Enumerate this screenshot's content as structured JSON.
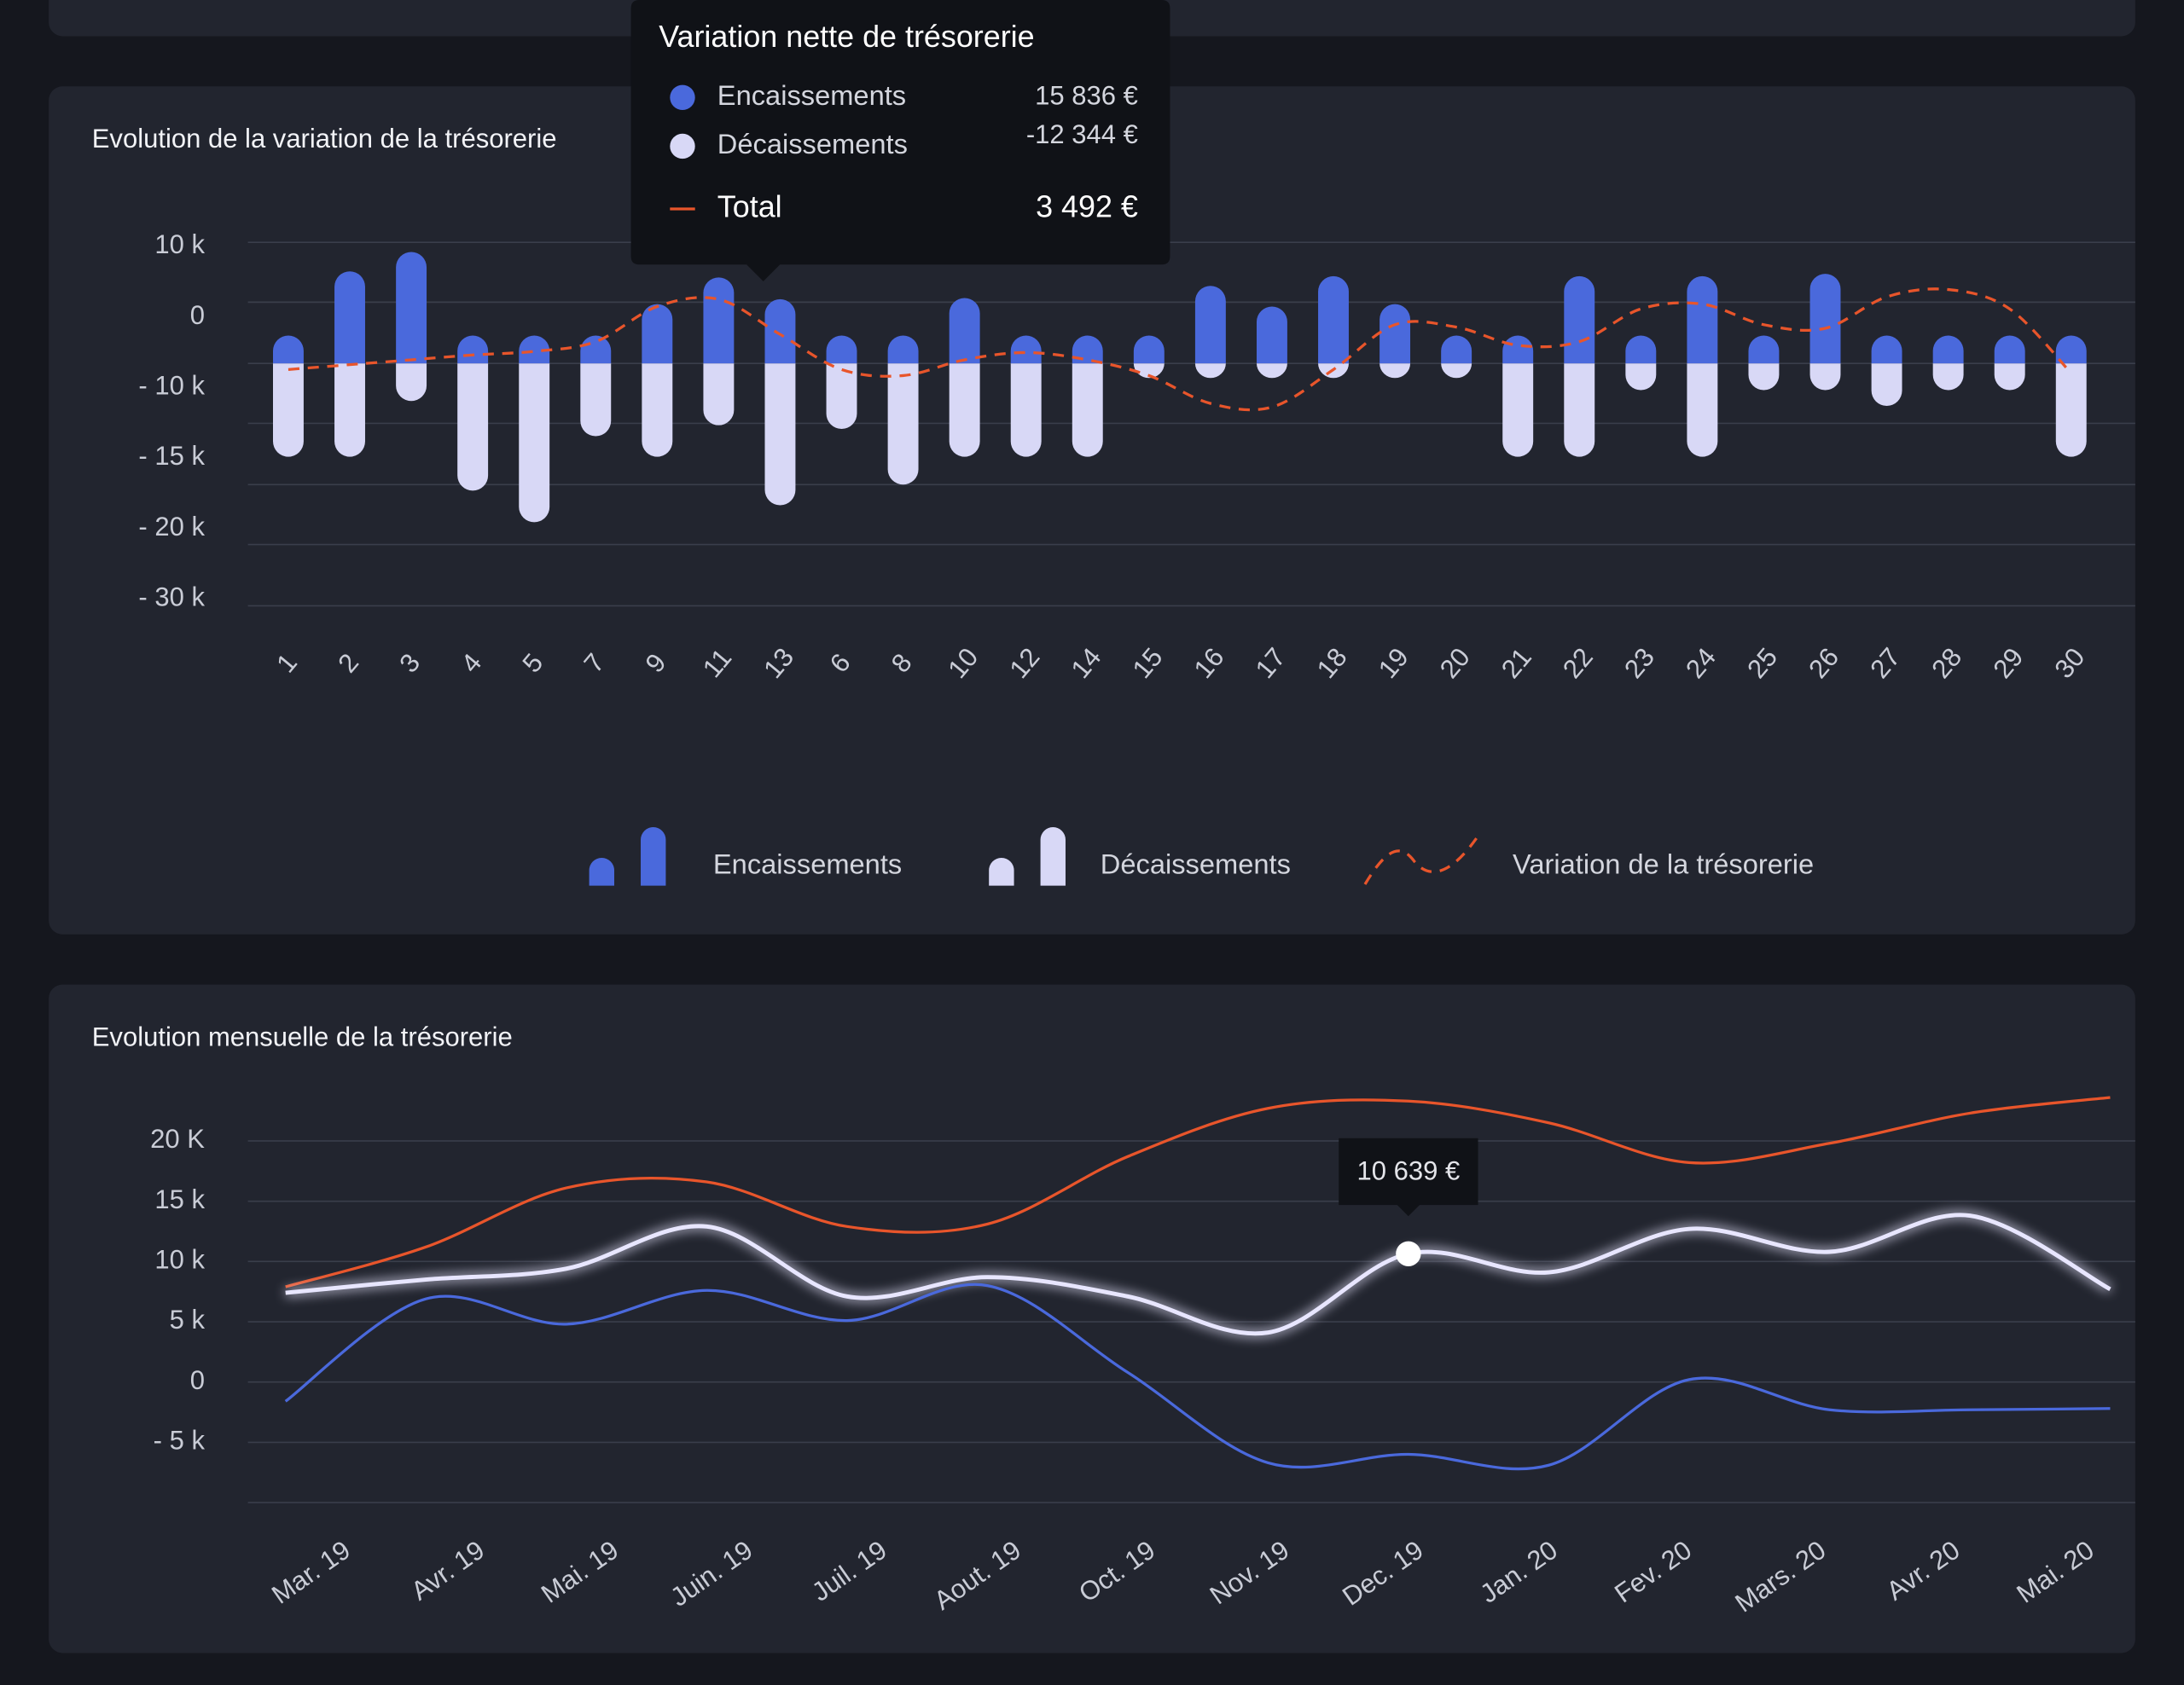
{
  "chart_data": [
    {
      "type": "bar",
      "title": "Evolution de la variation de la trésorerie",
      "categories": [
        "1",
        "2",
        "3",
        "4",
        "5",
        "7",
        "9",
        "11",
        "13",
        "6",
        "8",
        "10",
        "12",
        "14",
        "15",
        "16",
        "17",
        "18",
        "19",
        "20",
        "21",
        "22",
        "23",
        "24",
        "25",
        "26",
        "27",
        "28",
        "29",
        "30"
      ],
      "series": [
        {
          "name": "Encaissements",
          "color": "#4a69dc",
          "values": [
            2300,
            7600,
            9200,
            2300,
            2300,
            2300,
            4900,
            7100,
            5300,
            2300,
            2300,
            5400,
            2300,
            2300,
            2300,
            6400,
            4700,
            7200,
            4900,
            2300,
            2300,
            7200,
            2300,
            7200,
            2300,
            7400,
            2300,
            2300,
            2300,
            2300
          ]
        },
        {
          "name": "Décaissements",
          "color": "#d8d8f6",
          "values": [
            -7700,
            -7700,
            -3100,
            -10500,
            -13100,
            -6000,
            -7700,
            -5100,
            -11700,
            -5400,
            -10000,
            -7700,
            -7700,
            -7700,
            -1200,
            -1200,
            -1200,
            -1200,
            -1200,
            -1200,
            -7700,
            -7700,
            -2200,
            -7700,
            -2200,
            -2200,
            -3500,
            -2200,
            -2200,
            -7700
          ]
        },
        {
          "name": "Variation de la trésorerie",
          "type": "line",
          "color": "#e8552b",
          "values": [
            -500,
            -100,
            300,
            700,
            1000,
            1800,
            4700,
            5300,
            2400,
            -500,
            -1000,
            300,
            900,
            300,
            -1000,
            -3300,
            -3600,
            -500,
            3200,
            3000,
            1500,
            1800,
            4500,
            4900,
            3200,
            2900,
            5500,
            6100,
            4500,
            -800
          ]
        }
      ],
      "ylim": [
        -20000,
        10000
      ],
      "yticks": [
        {
          "value": 10000,
          "label": "10 k"
        },
        0,
        {
          "value": -10000,
          "label": "- 10 k"
        },
        {
          "value": -15000,
          "label": "- 15 k"
        },
        {
          "value": -20000,
          "label": "- 20 k"
        },
        {
          "value": -30000,
          "label": "- 30 k"
        }
      ],
      "grid": true,
      "legend": "bottom",
      "tooltip": {
        "title": "Variation nette de trésorerie",
        "rows": [
          {
            "name": "Encaissements",
            "label": "15 836 €"
          },
          {
            "name": "Décaissements",
            "label": "-12 344 €"
          },
          {
            "name": "Total",
            "label": "3 492 €"
          }
        ]
      }
    },
    {
      "type": "line",
      "title": "Evolution mensuelle de la trésorerie",
      "categories": [
        "Mar. 19",
        "Avr. 19",
        "Mai. 19",
        "Juin. 19",
        "Juil. 19",
        "Aout. 19",
        "Oct. 19",
        "Nov. 19",
        "Dec. 19",
        "Jan. 20",
        "Fev. 20",
        "Mars. 20",
        "Avr. 20",
        "Mai. 20"
      ],
      "series": [
        {
          "color": "#e8552b",
          "values": [
            7900,
            11200,
            16100,
            16600,
            12900,
            13100,
            18700,
            22700,
            23300,
            21500,
            18200,
            19800,
            22300,
            23600
          ]
        },
        {
          "color": "#e8e6ff",
          "values": [
            7400,
            8500,
            9400,
            12900,
            7100,
            8700,
            7100,
            4100,
            10639,
            9100,
            12700,
            10800,
            13800,
            7700
          ],
          "value_labels": [
            null,
            null,
            null,
            null,
            null,
            null,
            null,
            null,
            "10 639 €",
            null,
            null,
            null,
            null,
            null
          ]
        },
        {
          "color": "#4a69dc",
          "values": [
            -1600,
            6900,
            4800,
            7600,
            5100,
            8000,
            800,
            -6700,
            -6000,
            -6900,
            200,
            -2300,
            -2300,
            -2200
          ]
        }
      ],
      "ylim": [
        -10000,
        25000
      ],
      "yticks": [
        {
          "value": 20000,
          "label": "20 K"
        },
        {
          "value": 15000,
          "label": "15 k"
        },
        {
          "value": 10000,
          "label": "10 k"
        },
        {
          "value": 5000,
          "label": "5 k"
        },
        0,
        {
          "value": -5000,
          "label": "- 5 k"
        }
      ],
      "grid": true
    }
  ]
}
